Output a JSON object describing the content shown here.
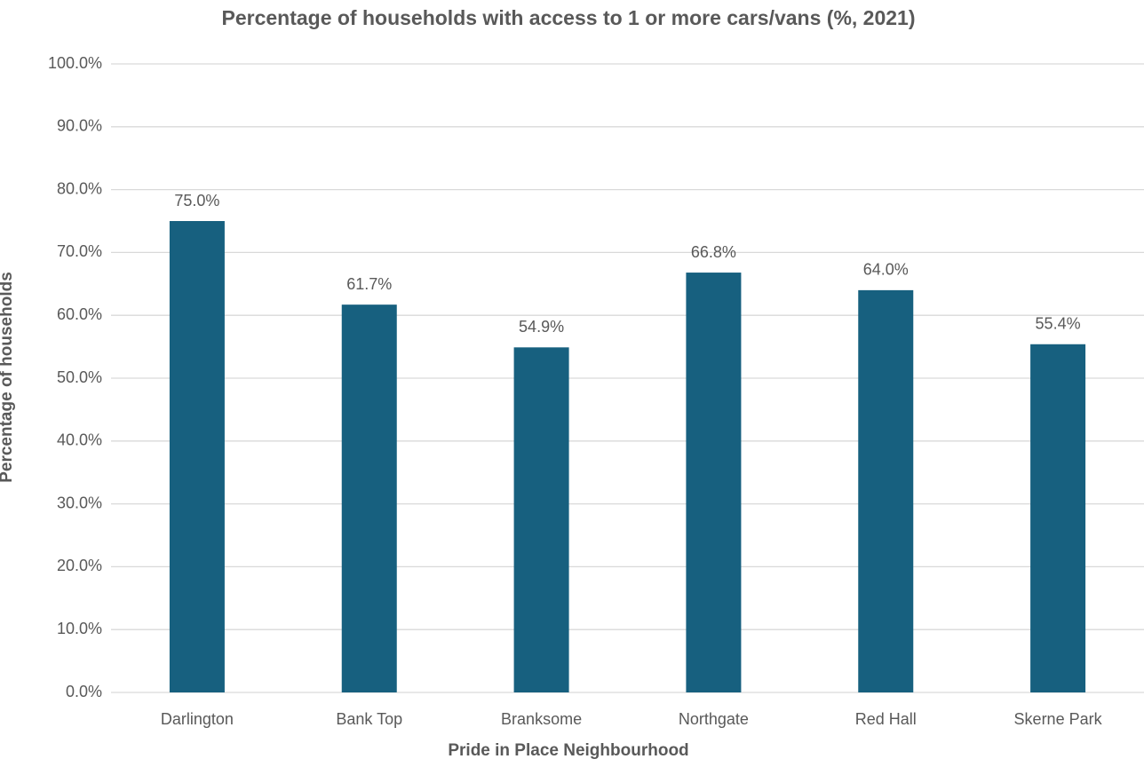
{
  "chart_data": {
    "type": "bar",
    "title": "Percentage of households with access to 1 or more cars/vans (%, 2021)",
    "x_label": "Pride in Place Neighbourhood",
    "y_label": "Percentage of households",
    "categories": [
      "Darlington",
      "Bank Top",
      "Branksome",
      "Northgate",
      "Red Hall",
      "Skerne Park"
    ],
    "values": [
      75.0,
      61.7,
      54.9,
      66.8,
      64.0,
      55.4
    ],
    "value_labels": [
      "75.0%",
      "61.7%",
      "54.9%",
      "66.8%",
      "64.0%",
      "55.4%"
    ],
    "color": "#17607f",
    "ylim": [
      0,
      100
    ],
    "yticks": [
      {
        "value": 0,
        "label": "0.0%"
      },
      {
        "value": 10,
        "label": "10.0%"
      },
      {
        "value": 20,
        "label": "20.0%"
      },
      {
        "value": 30,
        "label": "30.0%"
      },
      {
        "value": 40,
        "label": "40.0%"
      },
      {
        "value": 50,
        "label": "50.0%"
      },
      {
        "value": 60,
        "label": "60.0%"
      },
      {
        "value": 70,
        "label": "70.0%"
      },
      {
        "value": 80,
        "label": "80.0%"
      },
      {
        "value": 90,
        "label": "90.0%"
      },
      {
        "value": 100,
        "label": "100.0%"
      }
    ],
    "grid": true
  }
}
